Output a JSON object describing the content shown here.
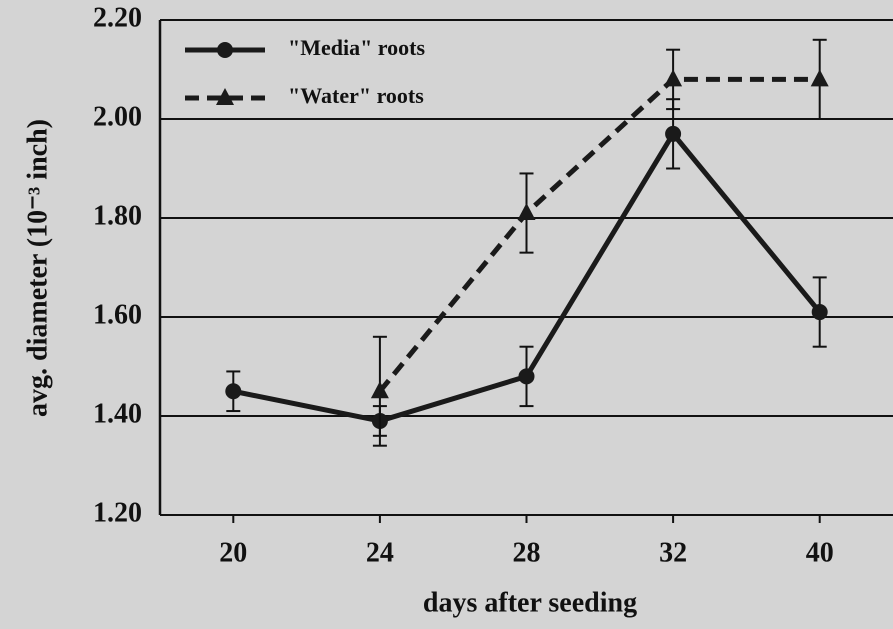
{
  "chart_data": {
    "type": "line",
    "xlabel": "days after seeding",
    "ylabel": "avg. diameter (10⁻³ inch)",
    "categories": [
      "20",
      "24",
      "28",
      "32",
      "40"
    ],
    "series": [
      {
        "name": "\"Media\" roots",
        "color": "#1a1a1a",
        "marker": "circle",
        "linestyle": "solid",
        "values": [
          1.45,
          1.39,
          1.48,
          1.97,
          1.61
        ],
        "errors": [
          0.04,
          0.03,
          0.06,
          0.07,
          0.07
        ]
      },
      {
        "name": "\"Water\" roots",
        "color": "#1a1a1a",
        "marker": "triangle",
        "linestyle": "dashed",
        "values": [
          null,
          1.45,
          1.81,
          2.08,
          2.08
        ],
        "errors": [
          null,
          0.11,
          0.08,
          0.06,
          0.08
        ]
      }
    ],
    "ylim": [
      1.2,
      2.2
    ],
    "yticks": [
      {
        "value": 1.2,
        "label": "1.20"
      },
      {
        "value": 1.4,
        "label": "1.40"
      },
      {
        "value": 1.6,
        "label": "1.60"
      },
      {
        "value": 1.8,
        "label": "1.80"
      },
      {
        "value": 2.0,
        "label": "2.00"
      },
      {
        "value": 2.2,
        "label": "2.20"
      }
    ],
    "grid": true,
    "legend": "upper left"
  }
}
